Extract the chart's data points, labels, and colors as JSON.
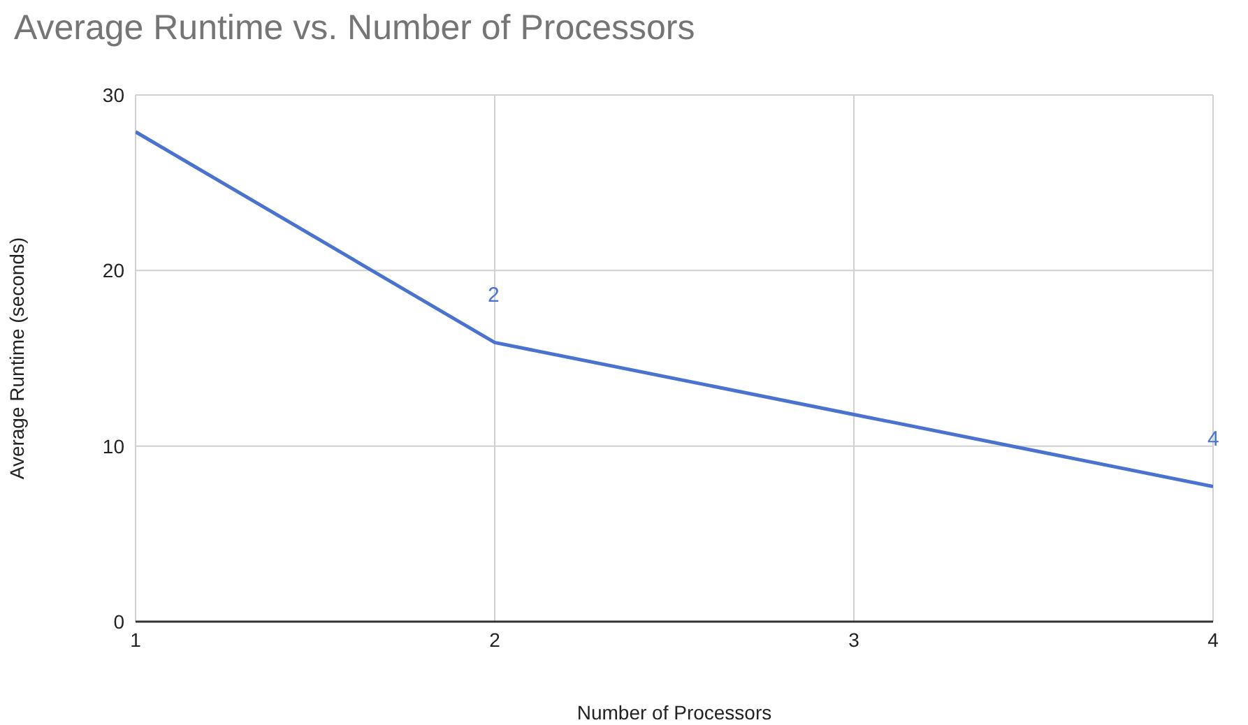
{
  "chart_data": {
    "type": "line",
    "title": "Average Runtime vs. Number of Processors",
    "xlabel": "Number of Processors",
    "ylabel": "Average Runtime (seconds)",
    "x": [
      1,
      2,
      3,
      4
    ],
    "series": [
      {
        "color": "#4a72cf",
        "values": [
          27.9,
          15.9,
          11.8,
          7.7
        ]
      }
    ],
    "xlim": [
      1,
      4
    ],
    "xticks": [
      1,
      2,
      3,
      4
    ],
    "ylim": [
      0,
      30
    ],
    "yticks": [
      0,
      10,
      20,
      30
    ],
    "grid": true,
    "legend": false,
    "marker": "none",
    "line_style": "solid",
    "annotations": [
      "2",
      "4"
    ]
  }
}
